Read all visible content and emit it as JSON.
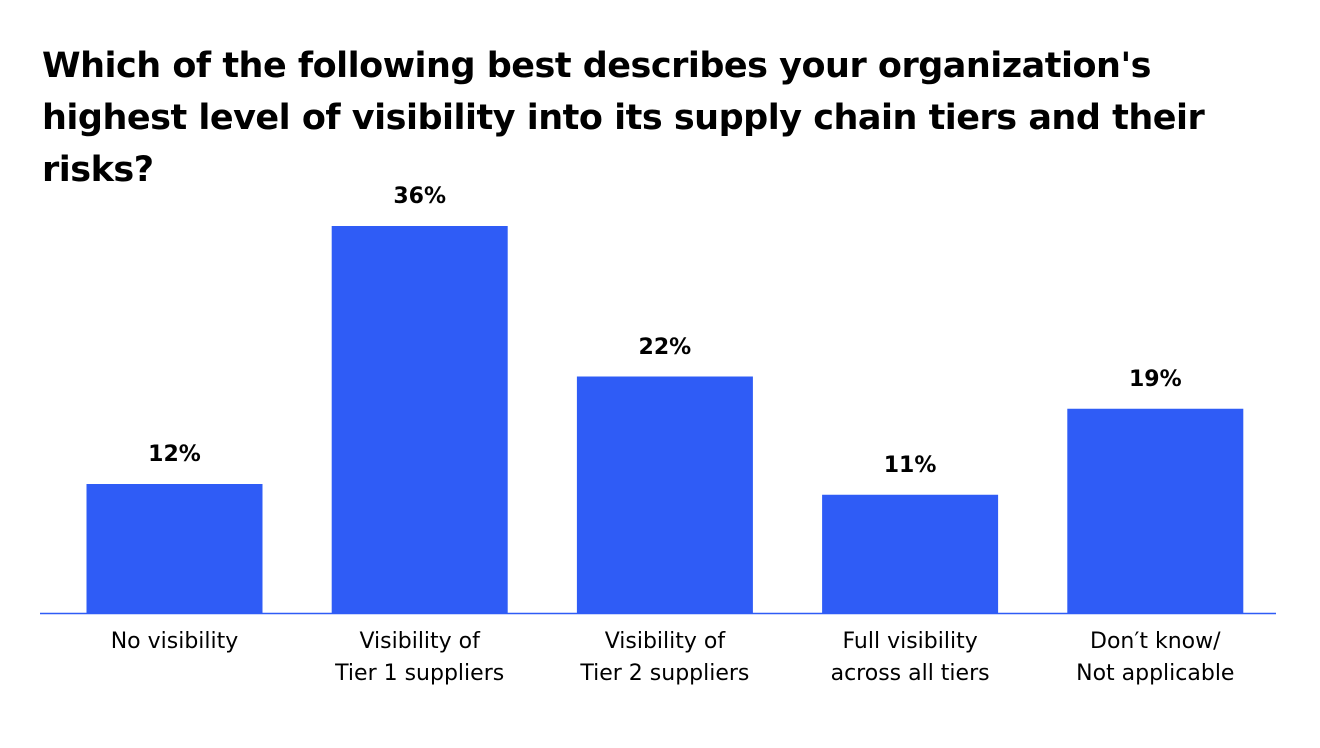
{
  "chart_data": {
    "type": "bar",
    "title": "Which of the following best describes your organization's highest level of visibility into its supply chain tiers and their risks?",
    "categories": [
      "No visibility",
      "Visibility of\nTier 1 suppliers",
      "Visibility of\nTier 2 suppliers",
      "Full visibility\nacross all tiers",
      "Don′t know/\nNot applicable"
    ],
    "values": [
      12,
      36,
      22,
      11,
      19
    ],
    "value_labels": [
      "12%",
      "36%",
      "22%",
      "11%",
      "19%"
    ],
    "color": "#2f5cf6"
  }
}
